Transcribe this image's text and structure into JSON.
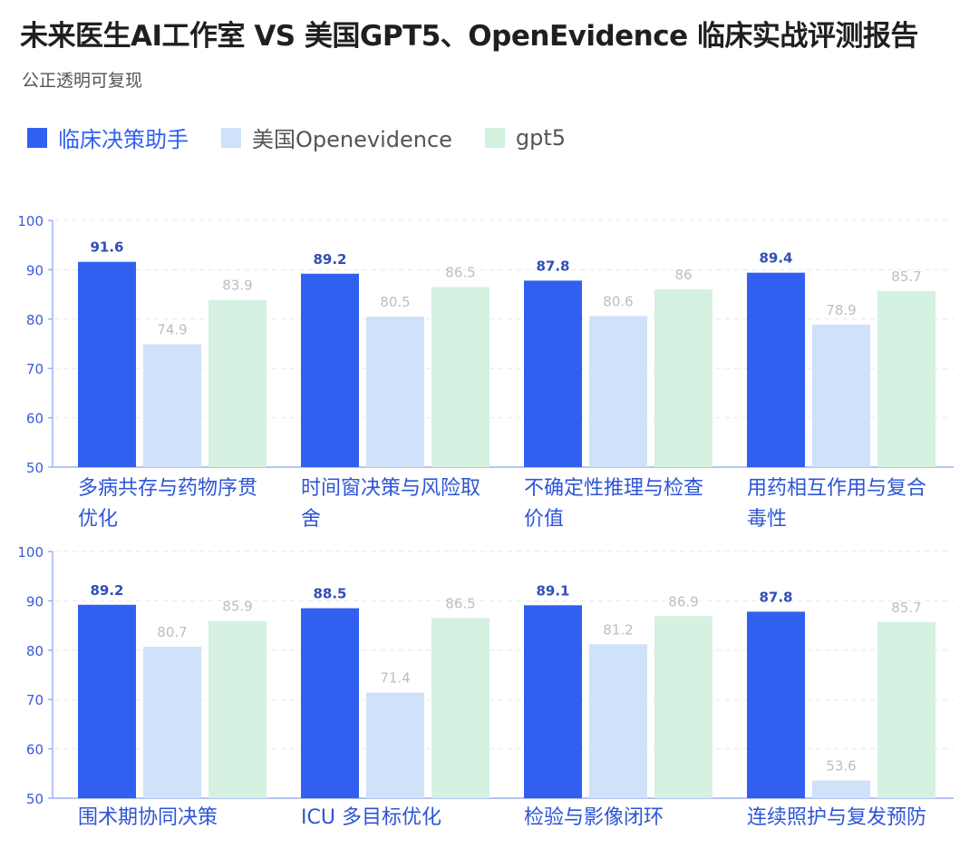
{
  "title": "未来医生AI工作室 VS 美国GPT5、OpenEvidence 临床实战评测报告",
  "subtitle": "公正透明可复现",
  "colors": {
    "series": [
      "#3160f0",
      "#cfe2fa",
      "#d4f1e1"
    ],
    "legend_text": [
      "#3160f0",
      "#555555",
      "#555555"
    ],
    "axis": "#9fb2ee",
    "tick_label": "#3b5bd8",
    "category_label": "#2d55d6",
    "value_label_primary": "#2f4fb8",
    "value_label_other": "#b9bec6"
  },
  "legend": [
    {
      "name": "临床决策助手",
      "icon": "square-swatch"
    },
    {
      "name": "美国Openevidence",
      "icon": "square-swatch"
    },
    {
      "name": "gpt5",
      "icon": "square-swatch"
    }
  ],
  "chart_data": [
    {
      "type": "bar",
      "categories": [
        "多病共存与药物序贯优化",
        "时间窗决策与风险取舍",
        "不确定性推理与检查价值",
        "用药相互作用与复合毒性"
      ],
      "series": [
        {
          "name": "临床决策助手",
          "values": [
            91.6,
            89.2,
            87.8,
            89.4
          ]
        },
        {
          "name": "美国Openevidence",
          "values": [
            74.9,
            80.5,
            80.6,
            78.9
          ]
        },
        {
          "name": "gpt5",
          "values": [
            83.9,
            86.5,
            86,
            85.7
          ]
        }
      ],
      "ylim": [
        50,
        100
      ],
      "yticks": [
        "50",
        "60",
        "70",
        "80",
        "90",
        "100"
      ],
      "grid": "dashed",
      "legend": "top-left"
    },
    {
      "type": "bar",
      "categories": [
        "围术期协同决策",
        "ICU 多目标优化",
        "检验与影像闭环",
        "连续照护与复发预防"
      ],
      "series": [
        {
          "name": "临床决策助手",
          "values": [
            89.2,
            88.5,
            89.1,
            87.8
          ]
        },
        {
          "name": "美国Openevidence",
          "values": [
            80.7,
            71.4,
            81.2,
            53.6
          ]
        },
        {
          "name": "gpt5",
          "values": [
            85.9,
            86.5,
            86.9,
            85.7
          ]
        }
      ],
      "ylim": [
        50,
        100
      ],
      "yticks": [
        "50",
        "60",
        "70",
        "80",
        "90",
        "100"
      ],
      "grid": "dashed",
      "legend": "top-left"
    }
  ]
}
